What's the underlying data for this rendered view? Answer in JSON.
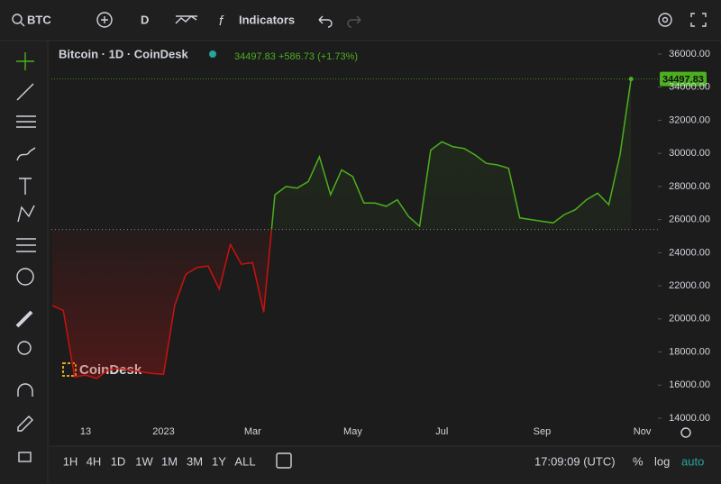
{
  "toolbar": {
    "symbol": "BTC",
    "interval": "D",
    "indicators": "Indicators"
  },
  "chart_data": {
    "type": "line",
    "title": "Bitcoin · 1D · CoinDesk",
    "watermark": "CoinDesk",
    "legend": {
      "last": "34497.83",
      "change": "+586.73",
      "change_pct": "(+1.73%)"
    },
    "categories": [
      null,
      null,
      null,
      "13",
      null,
      null,
      null,
      null,
      null,
      null,
      "2023",
      null,
      null,
      null,
      null,
      null,
      null,
      null,
      "Mar",
      null,
      null,
      null,
      null,
      null,
      null,
      null,
      null,
      "May",
      null,
      null,
      null,
      null,
      null,
      null,
      null,
      "Jul",
      null,
      null,
      null,
      null,
      null,
      null,
      null,
      null,
      "Sep",
      null,
      null,
      null,
      null,
      null,
      null,
      null,
      null,
      "Nov"
    ],
    "series": [
      {
        "name": "Bitcoin",
        "color": "#4caf1f",
        "below_color": "#c8120f",
        "values": [
          20800,
          20500,
          16500,
          16600,
          16400,
          16900,
          17000,
          16900,
          16800,
          16700,
          16650,
          20800,
          22700,
          23100,
          23200,
          21800,
          24500,
          23300,
          23400,
          20400,
          27500,
          28000,
          27900,
          28300,
          29800,
          27500,
          29000,
          28600,
          27000,
          27000,
          26800,
          27200,
          26200,
          25600,
          30200,
          30700,
          30400,
          30300,
          29900,
          29400,
          29300,
          29100,
          26100,
          26000,
          25900,
          25800,
          26300,
          26600,
          27200,
          27600,
          26900,
          29900,
          34497.83,
          null
        ]
      }
    ],
    "baseline": 25400,
    "ylim": [
      14000,
      36000
    ],
    "yticks": [
      {
        "value": 14000,
        "label": "14000.00"
      },
      {
        "value": 16000,
        "label": "16000.00"
      },
      {
        "value": 18000,
        "label": "18000.00"
      },
      {
        "value": 20000,
        "label": "20000.00"
      },
      {
        "value": 22000,
        "label": "22000.00"
      },
      {
        "value": 24000,
        "label": "24000.00"
      },
      {
        "value": 26000,
        "label": "26000.00"
      },
      {
        "value": 28000,
        "label": "28000.00"
      },
      {
        "value": 30000,
        "label": "30000.00"
      },
      {
        "value": 32000,
        "label": "32000.00"
      },
      {
        "value": 34000,
        "label": "34000.00"
      },
      {
        "value": 36000,
        "label": "36000.00"
      }
    ],
    "grid": false
  },
  "bottom_bar": {
    "ranges": [
      "1H",
      "4H",
      "1D",
      "1W",
      "1M",
      "3M",
      "1Y",
      "ALL"
    ],
    "clock": "17:09:09 (UTC)",
    "percent": "%",
    "log": "log",
    "auto": "auto"
  }
}
